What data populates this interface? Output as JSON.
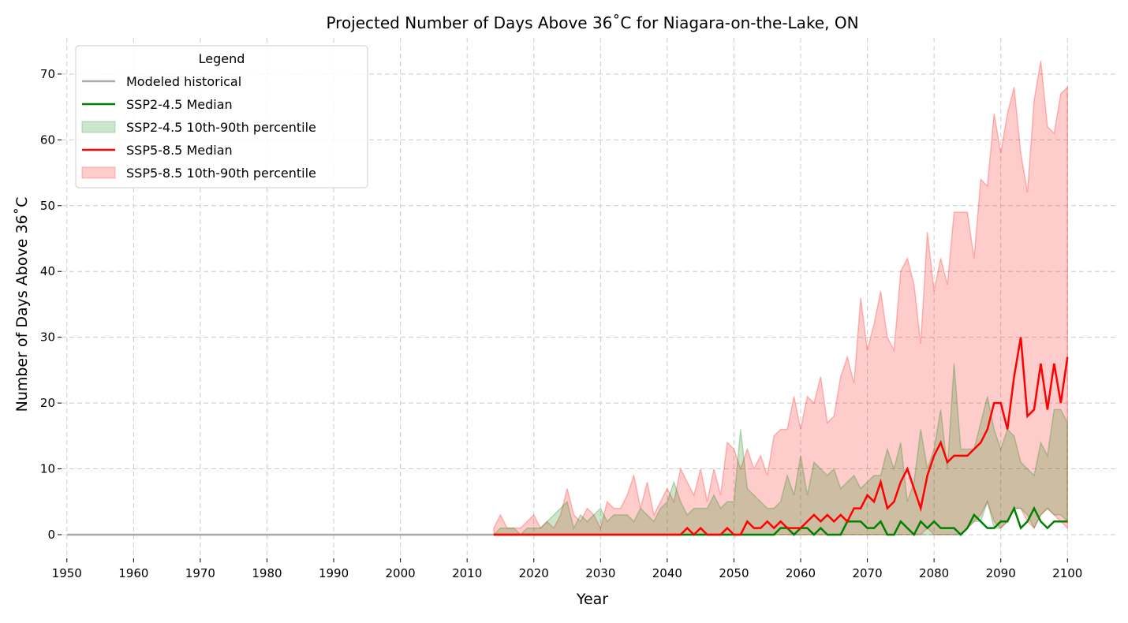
{
  "chart_data": {
    "type": "line",
    "title": "Projected Number of Days Above 36˚C for Niagara-on-the-Lake, ON",
    "xlabel": "Year",
    "ylabel": "Number of Days Above 36˚C",
    "xlim": [
      1949.2,
      2107.3
    ],
    "ylim": [
      -3.6,
      75.5
    ],
    "xticks": [
      1950,
      1960,
      1970,
      1980,
      1990,
      2000,
      2010,
      2020,
      2030,
      2040,
      2050,
      2060,
      2070,
      2080,
      2090,
      2100
    ],
    "yticks": [
      0,
      10,
      20,
      30,
      40,
      50,
      60,
      70
    ],
    "grid": true,
    "legend": {
      "title": "Legend",
      "placement": "top-left"
    },
    "historical": {
      "name": "Modeled historical",
      "color": "#a9a9a9",
      "x_start": 1950,
      "x_end": 2014,
      "value": 0
    },
    "proj_start_year": 2014,
    "series": [
      {
        "name": "SSP2-4.5 Median",
        "kind": "line",
        "color": "#008000",
        "values": [
          0,
          0,
          0,
          0,
          0,
          0,
          0,
          0,
          0,
          0,
          0,
          0,
          0,
          0,
          0,
          0,
          0,
          0,
          0,
          0,
          0,
          0,
          0,
          0,
          0,
          0,
          0,
          0,
          0,
          0,
          0,
          0,
          0,
          0,
          0,
          0,
          0,
          0,
          0,
          0,
          0,
          0,
          0,
          1,
          1,
          0,
          1,
          1,
          0,
          1,
          0,
          0,
          0,
          2,
          2,
          2,
          1,
          1,
          2,
          0,
          0,
          2,
          1,
          0,
          2,
          1,
          2,
          1,
          1,
          1,
          0,
          1,
          3,
          2,
          1,
          1,
          2,
          2,
          4,
          1,
          2,
          4,
          2,
          1,
          2,
          2,
          2
        ]
      },
      {
        "name": "SSP2-4.5 10th-90th percentile",
        "kind": "band",
        "color": "#008000",
        "lower": [
          0,
          0,
          0,
          0,
          0,
          0,
          0,
          0,
          0,
          0,
          0,
          0,
          0,
          0,
          0,
          0,
          0,
          0,
          0,
          0,
          0,
          0,
          0,
          0,
          0,
          0,
          0,
          0,
          0,
          0,
          0,
          0,
          0,
          0,
          0,
          0,
          0,
          0,
          0,
          0,
          0,
          0,
          0,
          0,
          0,
          0,
          0,
          0,
          0,
          0,
          0,
          0,
          0,
          0,
          0,
          0,
          0,
          0,
          0,
          0,
          0,
          0,
          0,
          0,
          0,
          0,
          0,
          0,
          0,
          0,
          0,
          1,
          2,
          2,
          5,
          1,
          1,
          2,
          4,
          4,
          3,
          1,
          3,
          4,
          3,
          3,
          2
        ],
        "upper": [
          0,
          1,
          1,
          1,
          0,
          1,
          1,
          1,
          2,
          3,
          4,
          5,
          1,
          3,
          2,
          3,
          4,
          2,
          3,
          3,
          3,
          2,
          4,
          3,
          2,
          4,
          5,
          8,
          5,
          3,
          4,
          4,
          4,
          6,
          4,
          5,
          5,
          16,
          7,
          6,
          5,
          4,
          4,
          5,
          9,
          6,
          12,
          6,
          11,
          10,
          9,
          10,
          7,
          8,
          9,
          7,
          8,
          9,
          9,
          13,
          10,
          14,
          5,
          8,
          16,
          10,
          13,
          19,
          10,
          26,
          13,
          13,
          13,
          17,
          21,
          16,
          13,
          16,
          15,
          11,
          10,
          9,
          14,
          12,
          19,
          19,
          17
        ]
      },
      {
        "name": "SSP5-8.5 Median",
        "kind": "line",
        "color": "#ff0000",
        "values": [
          0,
          0,
          0,
          0,
          0,
          0,
          0,
          0,
          0,
          0,
          0,
          0,
          0,
          0,
          0,
          0,
          0,
          0,
          0,
          0,
          0,
          0,
          0,
          0,
          0,
          0,
          0,
          0,
          0,
          1,
          0,
          1,
          0,
          0,
          0,
          1,
          0,
          0,
          2,
          1,
          1,
          2,
          1,
          2,
          1,
          1,
          1,
          2,
          3,
          2,
          3,
          2,
          3,
          2,
          4,
          4,
          6,
          5,
          8,
          4,
          5,
          8,
          10,
          7,
          4,
          9,
          12,
          14,
          11,
          12,
          12,
          12,
          13,
          14,
          16,
          20,
          20,
          16,
          24,
          30,
          18,
          19,
          26,
          19,
          26,
          20,
          27
        ]
      },
      {
        "name": "SSP5-8.5 10th-90th percentile",
        "kind": "band",
        "color": "#ff0000",
        "lower": [
          0,
          0,
          0,
          0,
          0,
          0,
          0,
          0,
          0,
          0,
          0,
          0,
          0,
          0,
          0,
          0,
          0,
          0,
          0,
          0,
          0,
          0,
          0,
          0,
          0,
          0,
          0,
          0,
          0,
          0,
          0,
          0,
          0,
          0,
          0,
          0,
          0,
          0,
          0,
          0,
          0,
          0,
          0,
          0,
          0,
          0,
          0,
          0,
          0,
          0,
          0,
          0,
          0,
          0,
          0,
          0,
          0,
          0,
          0,
          0,
          0,
          0,
          0,
          0,
          0,
          1,
          0,
          0,
          0,
          0,
          0,
          1,
          2,
          3,
          5,
          2,
          1,
          2,
          4,
          4,
          2,
          1,
          3,
          4,
          3,
          2,
          1
        ],
        "upper": [
          1,
          3,
          1,
          1,
          1,
          2,
          3,
          1,
          2,
          1,
          3,
          7,
          3,
          2,
          4,
          3,
          1,
          5,
          4,
          4,
          6,
          9,
          4,
          8,
          3,
          5,
          7,
          5,
          10,
          8,
          6,
          10,
          5,
          10,
          6,
          14,
          13,
          10,
          13,
          10,
          12,
          9,
          15,
          16,
          16,
          21,
          16,
          21,
          20,
          24,
          17,
          18,
          24,
          27,
          23,
          36,
          28,
          32,
          37,
          30,
          28,
          40,
          42,
          38,
          29,
          46,
          37,
          42,
          38,
          49,
          49,
          49,
          42,
          54,
          53,
          64,
          58,
          64,
          68,
          58,
          52,
          66,
          72,
          62,
          61,
          67,
          68
        ]
      }
    ]
  }
}
